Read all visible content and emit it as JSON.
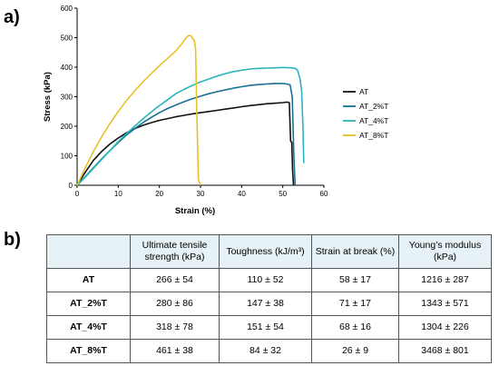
{
  "panels": {
    "a": "a)",
    "b": "b)"
  },
  "chart_data": {
    "type": "line",
    "xlabel": "Strain (%)",
    "ylabel": "Stress (kPa)",
    "xlim": [
      0,
      60
    ],
    "ylim": [
      0,
      600
    ],
    "xticks": [
      0,
      10,
      20,
      30,
      40,
      50,
      60
    ],
    "yticks": [
      0,
      100,
      200,
      300,
      400,
      500,
      600
    ],
    "grid": false,
    "legend_position": "right",
    "series": [
      {
        "name": "AT",
        "color": "#111111",
        "points": [
          [
            0,
            0
          ],
          [
            2,
            45
          ],
          [
            4,
            85
          ],
          [
            6,
            115
          ],
          [
            8,
            140
          ],
          [
            10,
            160
          ],
          [
            12,
            178
          ],
          [
            14,
            192
          ],
          [
            16,
            203
          ],
          [
            18,
            212
          ],
          [
            20,
            220
          ],
          [
            22,
            226
          ],
          [
            24,
            232
          ],
          [
            26,
            237
          ],
          [
            28,
            242
          ],
          [
            30,
            246
          ],
          [
            32,
            250
          ],
          [
            34,
            254
          ],
          [
            36,
            258
          ],
          [
            38,
            262
          ],
          [
            40,
            266
          ],
          [
            42,
            270
          ],
          [
            44,
            273
          ],
          [
            46,
            276
          ],
          [
            48,
            278
          ],
          [
            50,
            280
          ],
          [
            51,
            282
          ],
          [
            51.6,
            280
          ],
          [
            51.9,
            150
          ],
          [
            52.2,
            145
          ],
          [
            52.4,
            50
          ],
          [
            52.6,
            0
          ]
        ]
      },
      {
        "name": "AT_2%T",
        "color": "#1a6f96",
        "points": [
          [
            0,
            0
          ],
          [
            2,
            30
          ],
          [
            4,
            60
          ],
          [
            6,
            90
          ],
          [
            8,
            118
          ],
          [
            10,
            145
          ],
          [
            12,
            170
          ],
          [
            14,
            192
          ],
          [
            16,
            212
          ],
          [
            18,
            230
          ],
          [
            20,
            246
          ],
          [
            22,
            260
          ],
          [
            24,
            272
          ],
          [
            26,
            283
          ],
          [
            28,
            293
          ],
          [
            30,
            302
          ],
          [
            32,
            310
          ],
          [
            34,
            317
          ],
          [
            36,
            323
          ],
          [
            38,
            329
          ],
          [
            40,
            334
          ],
          [
            42,
            338
          ],
          [
            44,
            341
          ],
          [
            46,
            343
          ],
          [
            48,
            345
          ],
          [
            50,
            345
          ],
          [
            51,
            343
          ],
          [
            51.8,
            340
          ],
          [
            52.3,
            300
          ],
          [
            52.7,
            100
          ],
          [
            53,
            0
          ]
        ]
      },
      {
        "name": "AT_4%T",
        "color": "#2bb5b8",
        "points": [
          [
            0,
            0
          ],
          [
            2,
            28
          ],
          [
            4,
            58
          ],
          [
            6,
            88
          ],
          [
            8,
            118
          ],
          [
            10,
            148
          ],
          [
            12,
            175
          ],
          [
            14,
            200
          ],
          [
            16,
            225
          ],
          [
            18,
            248
          ],
          [
            20,
            270
          ],
          [
            22,
            290
          ],
          [
            24,
            310
          ],
          [
            26,
            325
          ],
          [
            28,
            338
          ],
          [
            30,
            350
          ],
          [
            32,
            360
          ],
          [
            34,
            370
          ],
          [
            36,
            378
          ],
          [
            38,
            385
          ],
          [
            40,
            390
          ],
          [
            42,
            394
          ],
          [
            44,
            396
          ],
          [
            46,
            397
          ],
          [
            48,
            398
          ],
          [
            50,
            399
          ],
          [
            52,
            398
          ],
          [
            53,
            396
          ],
          [
            53.6,
            390
          ],
          [
            54.2,
            360
          ],
          [
            54.6,
            320
          ],
          [
            54.9,
            200
          ],
          [
            55.1,
            75
          ]
        ]
      },
      {
        "name": "AT_8%T",
        "color": "#e8c227",
        "points": [
          [
            0,
            0
          ],
          [
            2,
            60
          ],
          [
            4,
            115
          ],
          [
            6,
            165
          ],
          [
            8,
            210
          ],
          [
            10,
            250
          ],
          [
            12,
            287
          ],
          [
            14,
            320
          ],
          [
            16,
            350
          ],
          [
            18,
            378
          ],
          [
            20,
            405
          ],
          [
            22,
            430
          ],
          [
            24,
            455
          ],
          [
            25.5,
            480
          ],
          [
            26.5,
            500
          ],
          [
            27.2,
            508
          ],
          [
            27.8,
            505
          ],
          [
            28.2,
            495
          ],
          [
            28.5,
            490
          ],
          [
            28.8,
            460
          ],
          [
            29.1,
            250
          ],
          [
            29.5,
            20
          ],
          [
            30,
            0
          ]
        ]
      }
    ]
  },
  "table": {
    "headers": [
      "",
      "Ultimate tensile strength (kPa)",
      "Toughness (kJ/m³)",
      "Strain at break (%)",
      "Young’s modulus (kPa)"
    ],
    "rows": [
      [
        "AT",
        "266 ± 54",
        "110 ± 52",
        "58 ± 17",
        "1216 ± 287"
      ],
      [
        "AT_2%T",
        "280 ± 86",
        "147 ± 38",
        "71 ± 17",
        "1343 ± 571"
      ],
      [
        "AT_4%T",
        "318 ± 78",
        "151 ± 54",
        "68 ± 16",
        "1304 ± 226"
      ],
      [
        "AT_8%T",
        "461 ± 38",
        "84 ± 32",
        "26 ± 9",
        "3468 ± 801"
      ]
    ]
  }
}
